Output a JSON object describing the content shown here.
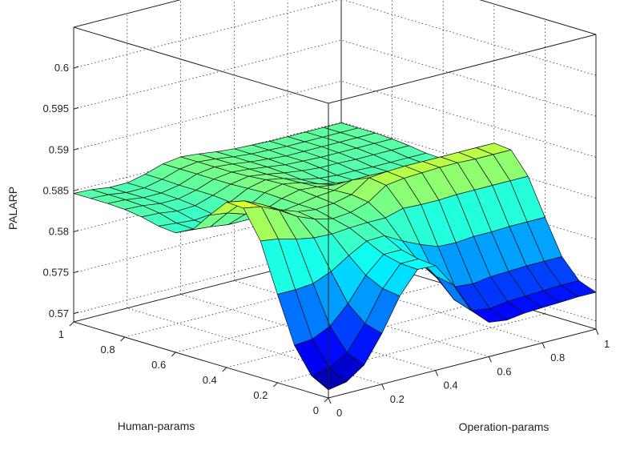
{
  "chart_data": {
    "type": "surface",
    "xlabel": "Operation-params",
    "ylabel": "Human-params",
    "zlabel": "PALARP",
    "x_ticks": [
      "0",
      "0.2",
      "0.4",
      "0.6",
      "0.8",
      "1"
    ],
    "y_ticks": [
      "0",
      "0.2",
      "0.4",
      "0.6",
      "0.8",
      "1"
    ],
    "z_ticks": [
      "0.57",
      "0.575",
      "0.58",
      "0.585",
      "0.59",
      "0.595",
      "0.6"
    ],
    "xlim": [
      0,
      1
    ],
    "ylim": [
      0,
      1
    ],
    "zlim": [
      0.569,
      0.605
    ],
    "grid": true,
    "colormap": "jet",
    "color_limits": [
      0.569,
      0.603
    ],
    "z_values": [
      [
        0.57,
        0.5704,
        0.5719,
        0.5752,
        0.5792,
        0.5819,
        0.5818,
        0.5789,
        0.5752,
        0.5732,
        0.5729,
        0.5732,
        0.5733,
        0.5734,
        0.5735,
        0.5735
      ],
      [
        0.5711,
        0.5715,
        0.5728,
        0.5758,
        0.5795,
        0.582,
        0.582,
        0.5793,
        0.5759,
        0.574,
        0.5737,
        0.574,
        0.5741,
        0.5742,
        0.5743,
        0.5743
      ],
      [
        0.5742,
        0.5744,
        0.5754,
        0.5776,
        0.5805,
        0.5825,
        0.5825,
        0.5804,
        0.5779,
        0.5763,
        0.5761,
        0.5764,
        0.5765,
        0.5766,
        0.5766,
        0.5766
      ],
      [
        0.5798,
        0.5798,
        0.58,
        0.5809,
        0.5823,
        0.5835,
        0.5836,
        0.5824,
        0.5814,
        0.5806,
        0.5805,
        0.5807,
        0.5807,
        0.5808,
        0.5808,
        0.5808
      ],
      [
        0.5857,
        0.5854,
        0.5848,
        0.5844,
        0.5843,
        0.5845,
        0.5846,
        0.5846,
        0.5852,
        0.5851,
        0.5851,
        0.5852,
        0.5852,
        0.5852,
        0.5852,
        0.5852
      ],
      [
        0.5891,
        0.5887,
        0.5877,
        0.5864,
        0.5855,
        0.585,
        0.5852,
        0.5859,
        0.5874,
        0.5877,
        0.5878,
        0.5879,
        0.5879,
        0.5878,
        0.5878,
        0.5878
      ],
      [
        0.5892,
        0.5888,
        0.5878,
        0.5866,
        0.5858,
        0.5855,
        0.5857,
        0.5862,
        0.5877,
        0.5879,
        0.588,
        0.588,
        0.588,
        0.588,
        0.588,
        0.588
      ],
      [
        0.587,
        0.5867,
        0.586,
        0.5853,
        0.5852,
        0.5855,
        0.5859,
        0.5861,
        0.5868,
        0.5868,
        0.5867,
        0.5866,
        0.5866,
        0.5866,
        0.5866,
        0.5866
      ],
      [
        0.5846,
        0.5844,
        0.5841,
        0.5841,
        0.5847,
        0.5856,
        0.5861,
        0.5859,
        0.5856,
        0.5853,
        0.5851,
        0.5851,
        0.585,
        0.585,
        0.585,
        0.585
      ],
      [
        0.5836,
        0.5835,
        0.5833,
        0.5836,
        0.5845,
        0.5857,
        0.5862,
        0.5858,
        0.5851,
        0.5846,
        0.5844,
        0.5843,
        0.5843,
        0.5843,
        0.5842,
        0.5842
      ],
      [
        0.5838,
        0.5836,
        0.5834,
        0.5836,
        0.5845,
        0.5856,
        0.5861,
        0.5857,
        0.585,
        0.5846,
        0.5844,
        0.5844,
        0.5843,
        0.5843,
        0.5843,
        0.5843
      ],
      [
        0.5843,
        0.5842,
        0.5839,
        0.584,
        0.5847,
        0.5855,
        0.5859,
        0.5856,
        0.5852,
        0.5849,
        0.5847,
        0.5847,
        0.5846,
        0.5846,
        0.5846,
        0.5846
      ],
      [
        0.5846,
        0.5845,
        0.5842,
        0.5842,
        0.5847,
        0.5855,
        0.5858,
        0.5856,
        0.5853,
        0.585,
        0.5849,
        0.5848,
        0.5848,
        0.5848,
        0.5848,
        0.5848
      ],
      [
        0.5847,
        0.5846,
        0.5843,
        0.5843,
        0.5847,
        0.5855,
        0.5858,
        0.5856,
        0.5853,
        0.5851,
        0.5849,
        0.5849,
        0.5849,
        0.5849,
        0.5849,
        0.5849
      ],
      [
        0.5847,
        0.5846,
        0.5843,
        0.5843,
        0.5848,
        0.5855,
        0.5858,
        0.5856,
        0.5853,
        0.5851,
        0.585,
        0.5849,
        0.5849,
        0.5849,
        0.5849,
        0.5849
      ],
      [
        0.5847,
        0.5846,
        0.5843,
        0.5843,
        0.5848,
        0.5855,
        0.5858,
        0.5856,
        0.5853,
        0.5851,
        0.585,
        0.5849,
        0.5849,
        0.5849,
        0.5849,
        0.5849
      ]
    ]
  }
}
